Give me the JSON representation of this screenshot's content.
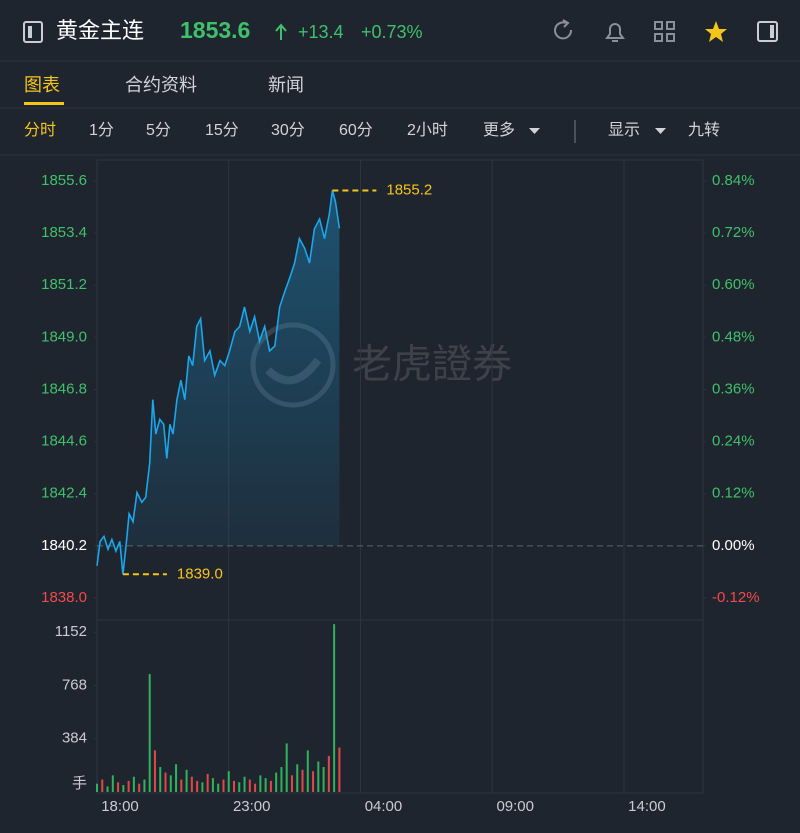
{
  "header": {
    "title": "黄金主连",
    "price": "1853.6",
    "change": "+13.4",
    "change_pct": "+0.73%"
  },
  "tabs": [
    "图表",
    "合约资料",
    "新闻"
  ],
  "intervals": [
    "分时",
    "1分",
    "5分",
    "15分",
    "30分",
    "60分",
    "2小时",
    "更多",
    "显示",
    "九转"
  ],
  "watermark": "老虎證券",
  "chart_data": [
    {
      "type": "line",
      "color": "#1aa7ec",
      "x": [
        0,
        7,
        16,
        25,
        34,
        43,
        52,
        59,
        66,
        73,
        82,
        91,
        102,
        111,
        120,
        127,
        134,
        143,
        152,
        159,
        166,
        173,
        182,
        191,
        200,
        209,
        218,
        227,
        236,
        245,
        257,
        268,
        280,
        291,
        302,
        314,
        325,
        336,
        348,
        359,
        370,
        382,
        393,
        405,
        416,
        427,
        439,
        450,
        461,
        473,
        484,
        495,
        507,
        518,
        529,
        536,
        543,
        552
      ],
      "values": [
        1839.36,
        1840.39,
        1840.6,
        1840.06,
        1840.47,
        1839.98,
        1840.39,
        1839.0,
        1840.18,
        1841.55,
        1841.22,
        1842.45,
        1842.04,
        1842.25,
        1843.69,
        1846.37,
        1844.92,
        1845.54,
        1845.33,
        1843.89,
        1845.33,
        1844.92,
        1846.37,
        1847.19,
        1846.37,
        1848.22,
        1847.81,
        1849.46,
        1849.79,
        1848.02,
        1848.43,
        1847.4,
        1848.02,
        1847.81,
        1848.43,
        1849.25,
        1849.46,
        1850.28,
        1849.25,
        1849.87,
        1848.84,
        1849.46,
        1848.43,
        1848.63,
        1850.28,
        1850.9,
        1851.52,
        1852.14,
        1853.17,
        1852.76,
        1852.14,
        1853.58,
        1853.99,
        1853.17,
        1854.2,
        1855.2,
        1854.74,
        1853.6
      ],
      "xlim": [
        0,
        1380
      ],
      "xticks": [
        {
          "value": 0,
          "label": "18:00"
        },
        {
          "value": 300,
          "label": "23:00"
        },
        {
          "value": 600,
          "label": "04:00"
        },
        {
          "value": 900,
          "label": "09:00"
        },
        {
          "value": 1200,
          "label": "14:00"
        }
      ],
      "ylim": [
        1838,
        1855.6
      ],
      "yticks": [
        1855.6,
        1853.4,
        1851.2,
        {
          "value": 1849,
          "label": "1849.0"
        },
        1846.8,
        1844.6,
        1842.4,
        1840.2,
        {
          "value": 1838,
          "label": "1838.0"
        }
      ],
      "y2lim": [
        -0.12,
        0.84
      ],
      "y2ticks": [
        {
          "value": 0.84,
          "label": "0.84%"
        },
        {
          "value": 0.72,
          "label": "0.72%"
        },
        {
          "value": 0.6,
          "label": "0.60%"
        },
        {
          "value": 0.48,
          "label": "0.48%"
        },
        {
          "value": 0.36,
          "label": "0.36%"
        },
        {
          "value": 0.24,
          "label": "0.24%"
        },
        {
          "value": 0.12,
          "label": "0.12%"
        },
        {
          "value": 0,
          "label": "0.00%"
        },
        {
          "value": -0.12,
          "label": "-0.12%"
        }
      ],
      "baseline": 1840.2,
      "annotations": [
        {
          "x": 536,
          "value": 1855.2,
          "label": "1855.2"
        },
        {
          "x": 59,
          "value": 1839,
          "label": "1839.0"
        }
      ]
    },
    {
      "type": "bar",
      "x": [
        0,
        12,
        24,
        36,
        48,
        60,
        72,
        84,
        96,
        108,
        120,
        132,
        144,
        156,
        168,
        180,
        192,
        204,
        216,
        228,
        240,
        252,
        264,
        276,
        288,
        300,
        312,
        324,
        336,
        348,
        360,
        372,
        384,
        396,
        408,
        420,
        432,
        444,
        456,
        468,
        480,
        492,
        504,
        516,
        528,
        540,
        552
      ],
      "values": [
        60,
        90,
        40,
        120,
        70,
        50,
        80,
        110,
        60,
        90,
        850,
        300,
        180,
        140,
        120,
        200,
        90,
        160,
        110,
        80,
        70,
        130,
        100,
        60,
        90,
        150,
        80,
        70,
        110,
        90,
        60,
        120,
        100,
        80,
        140,
        180,
        350,
        120,
        200,
        160,
        300,
        150,
        220,
        180,
        260,
        1210,
        320
      ],
      "colors": [
        "#2fb35c",
        "#e04848",
        "#2fb35c",
        "#2fb35c",
        "#e04848",
        "#2fb35c",
        "#e04848",
        "#2fb35c",
        "#e04848",
        "#2fb35c",
        "#2fb35c",
        "#e04848",
        "#2fb35c",
        "#e04848",
        "#2fb35c",
        "#2fb35c",
        "#e04848",
        "#2fb35c",
        "#e04848",
        "#e04848",
        "#2fb35c",
        "#e04848",
        "#2fb35c",
        "#2fb35c",
        "#e04848",
        "#2fb35c",
        "#e04848",
        "#2fb35c",
        "#2fb35c",
        "#e04848",
        "#e04848",
        "#2fb35c",
        "#2fb35c",
        "#e04848",
        "#2fb35c",
        "#2fb35c",
        "#2fb35c",
        "#e04848",
        "#2fb35c",
        "#e04848",
        "#2fb35c",
        "#e04848",
        "#2fb35c",
        "#2fb35c",
        "#e04848",
        "#2fb35c",
        "#e04848"
      ],
      "xlim": [
        0,
        1380
      ],
      "ylim": [
        0,
        1240
      ],
      "yticks": [
        384,
        768,
        1152
      ],
      "y_label": "手"
    }
  ]
}
